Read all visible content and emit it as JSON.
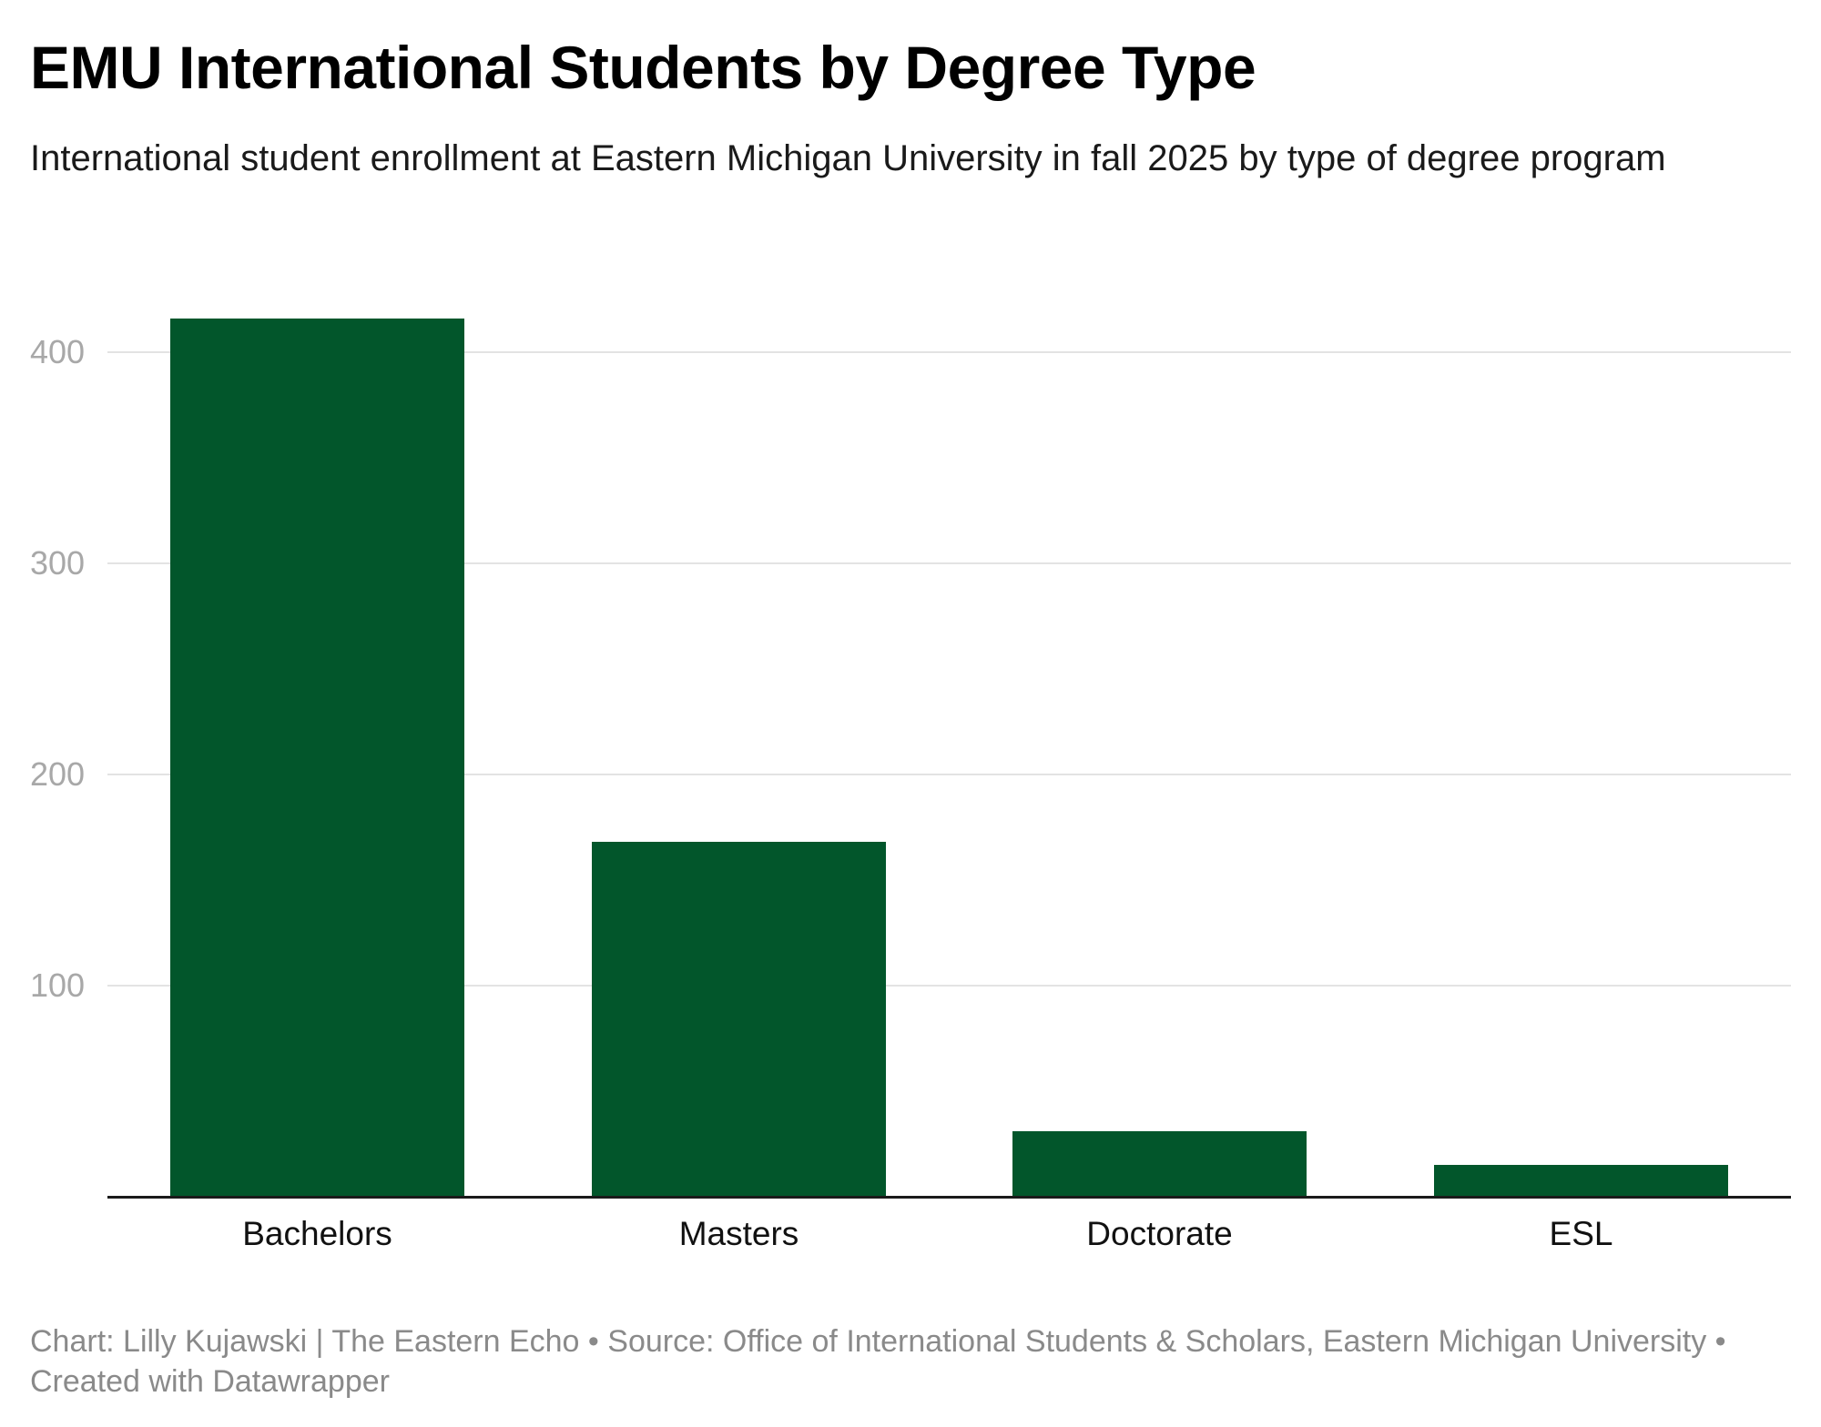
{
  "header": {
    "title": "EMU International Students by Degree Type",
    "subtitle": "International student enrollment at Eastern Michigan University in fall 2025 by type of degree program"
  },
  "footer": {
    "credit_line1": "Chart: Lilly Kujawski | The Eastern Echo • Source: Office of International Students & Scholars, Eastern Michigan University •",
    "credit_line2": "Created with Datawrapper"
  },
  "colors": {
    "bar": "#02562b",
    "gridline": "#e3e3e3",
    "tick_label": "#a8a8a8",
    "footer_text": "#8a8a8a"
  },
  "chart_data": {
    "type": "bar",
    "title": "EMU International Students by Degree Type",
    "subtitle": "International student enrollment at Eastern Michigan University in fall 2025 by type of degree program",
    "categories": [
      "Bachelors",
      "Masters",
      "Doctorate",
      "ESL"
    ],
    "values": [
      416,
      168,
      31,
      15
    ],
    "xlabel": "",
    "ylabel": "",
    "ylim": [
      0,
      420
    ],
    "yticks": [
      100,
      200,
      300,
      400
    ],
    "ytick_labels": [
      "100",
      "200",
      "300",
      "400"
    ],
    "grid": true,
    "legend": null,
    "source": "Office of International Students & Scholars, Eastern Michigan University"
  }
}
